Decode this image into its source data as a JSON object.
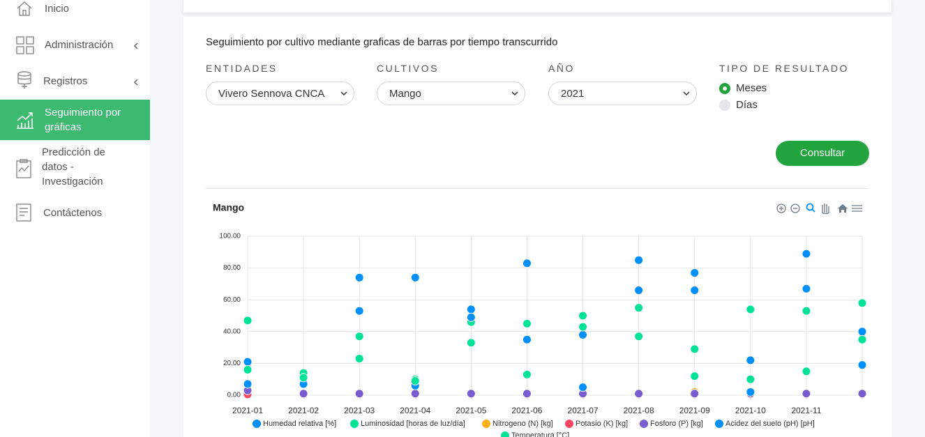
{
  "sidebar": {
    "items": [
      {
        "label": "Inicio"
      },
      {
        "label": "Administración"
      },
      {
        "label": "Registros"
      },
      {
        "label": "Seguimiento por gráficas"
      },
      {
        "label": "Predicción de datos - Investigación"
      },
      {
        "label": "Contáctenos"
      }
    ]
  },
  "form": {
    "heading": "Seguimiento por cultivo mediante graficas de barras por tiempo transcurrido",
    "fields": [
      {
        "label": "ENTIDADES",
        "value": "Vivero Sennova CNCA"
      },
      {
        "label": "CULTIVOS",
        "value": "Mango"
      },
      {
        "label": "AÑO",
        "value": "2021"
      }
    ],
    "result_type": {
      "label": "TIPO DE RESULTADO",
      "options": [
        "Meses",
        "Días"
      ]
    },
    "button": "Consultar"
  },
  "chart_data": {
    "type": "scatter",
    "title": "Mango",
    "categories": [
      "2021-01",
      "2021-02",
      "2021-03",
      "2021-04",
      "2021-05",
      "2021-06",
      "2021-07",
      "2021-08",
      "2021-09",
      "2021-10",
      "2021-11",
      null
    ],
    "ylim": [
      0,
      100
    ],
    "yticks": [
      {
        "value": 0,
        "label": "0.00"
      },
      {
        "value": 20,
        "label": "20.00"
      },
      {
        "value": 40,
        "label": "40.00"
      },
      {
        "value": 60,
        "label": "60.00"
      },
      {
        "value": 80,
        "label": "80.00"
      },
      {
        "value": 100,
        "label": "100.00"
      }
    ],
    "grid": true,
    "series": [
      {
        "name": "Humedad relativa [%]",
        "color": "#008ffb",
        "values": [
          21,
          8,
          74,
          74,
          54,
          83,
          38,
          85,
          77,
          22,
          89,
          40
        ]
      },
      {
        "name": "Luminosidad [horas de luz/día]",
        "color": "#00e396",
        "values": [
          47,
          14,
          37,
          10,
          46,
          45,
          50,
          55,
          29,
          54,
          53,
          58
        ]
      },
      {
        "name": "Nitrogeno (N) [kg]",
        "color": "#feb019",
        "values": [
          1,
          1,
          1,
          1,
          1,
          1,
          1,
          1,
          2,
          1,
          1,
          1
        ]
      },
      {
        "name": "Potasio (K) [kg]",
        "color": "#ff4560",
        "values": [
          0.5,
          0.5,
          0.5,
          0.5,
          0.5,
          0.5,
          0.5,
          0.5,
          0.5,
          0.5,
          0.5,
          0.5
        ]
      },
      {
        "name": "Fosforo (P) [kg]",
        "color": "#775dd0",
        "values": [
          3,
          1,
          1,
          1,
          1,
          1,
          1,
          1,
          1,
          1,
          1,
          1
        ]
      },
      {
        "name": "Acidez del suelo (pH) [pH]",
        "color": "#008ffb",
        "values": [
          7,
          7,
          53,
          6,
          49,
          35,
          5,
          66,
          66,
          2,
          67,
          19
        ]
      },
      {
        "name": "Temperatura [°C]",
        "color": "#00e396",
        "values": [
          16,
          11,
          23,
          9,
          33,
          13,
          43,
          37,
          12,
          10,
          15,
          35
        ]
      }
    ]
  }
}
